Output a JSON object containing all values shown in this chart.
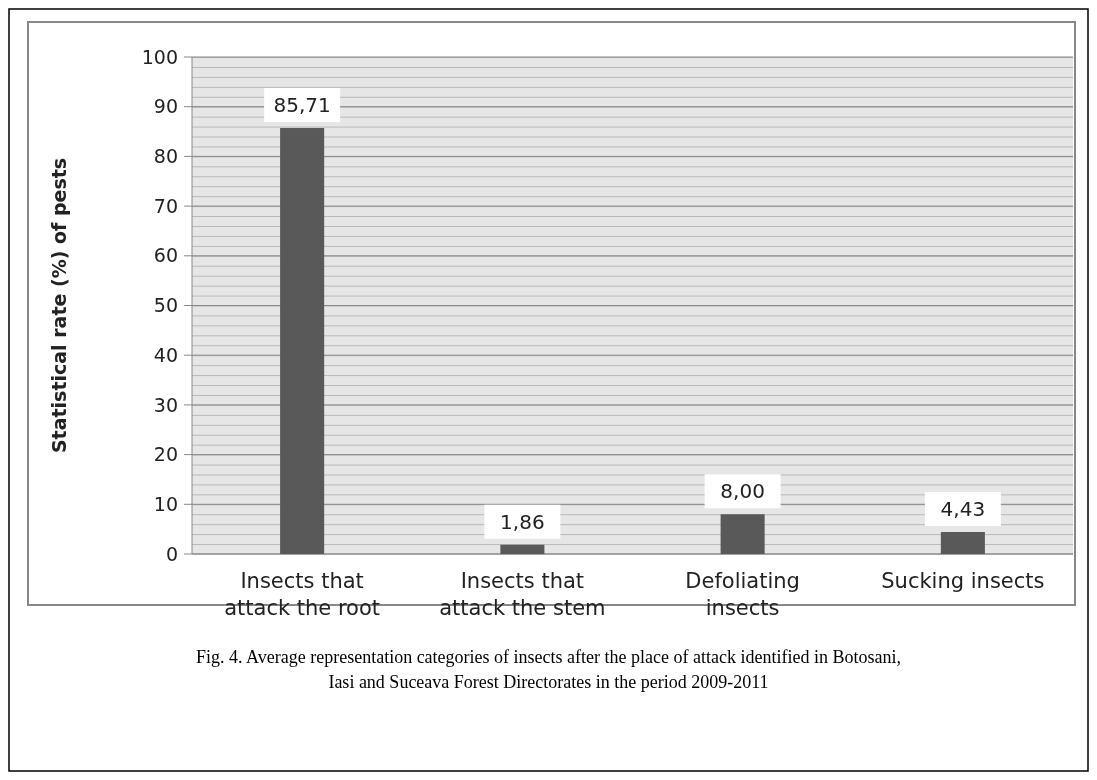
{
  "chart_data": {
    "type": "bar",
    "ylabel": "Statistical rate (%) of pests",
    "categories": [
      "Insects that\nattack the root",
      "Insects that\nattack the stem",
      "Defoliating\ninsects",
      "Sucking insects"
    ],
    "values": [
      85.71,
      1.86,
      8.0,
      4.43
    ],
    "value_labels": [
      "85,71",
      "1,86",
      "8,00",
      "4,43"
    ],
    "color": "#595959",
    "ylim": [
      0,
      100
    ],
    "yticks": [
      0,
      10,
      20,
      30,
      40,
      50,
      60,
      70,
      80,
      90,
      100
    ],
    "grid": "y",
    "annotations": [
      "Fig. 4. Average representation categories of insects after the place of attack identified in Botosani,\nIasi and Suceava Forest Directorates in the period 2009-2011"
    ]
  }
}
